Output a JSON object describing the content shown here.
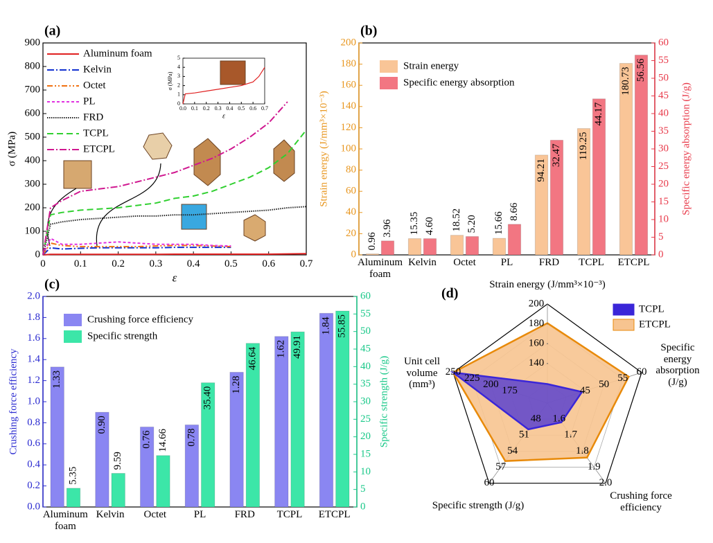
{
  "chart_data": [
    {
      "type": "line",
      "title": "(a)",
      "xlabel": "ε",
      "ylabel": "σ (MPa)",
      "x": [
        0,
        0.02,
        0.05,
        0.1,
        0.15,
        0.2,
        0.25,
        0.3,
        0.35,
        0.4,
        0.45,
        0.5,
        0.55,
        0.6,
        0.65,
        0.7
      ],
      "xlim": [
        0,
        0.7
      ],
      "xticks": [
        0,
        0.1,
        0.2,
        0.3,
        0.4,
        0.5,
        0.6,
        0.7
      ],
      "ylim": [
        0,
        900
      ],
      "yticks": [
        0,
        100,
        200,
        300,
        400,
        500,
        600,
        700,
        800,
        900
      ],
      "series": [
        {
          "name": "Aluminum foam",
          "color": "#e02020",
          "linestyle": "solid",
          "values": [
            0,
            2,
            2,
            2,
            2,
            2,
            2,
            2,
            3,
            3,
            3,
            3,
            3,
            3,
            4,
            5
          ]
        },
        {
          "name": "Kelvin",
          "color": "#1030d0",
          "linestyle": "dashdot",
          "values": [
            0,
            30,
            25,
            28,
            30,
            30,
            30,
            30,
            32,
            32,
            32,
            32,
            null,
            null,
            null,
            null
          ]
        },
        {
          "name": "Octet",
          "color": "#f07010",
          "linestyle": "dashdotdot",
          "values": [
            0,
            50,
            40,
            35,
            35,
            35,
            35,
            38,
            40,
            40,
            38,
            35,
            null,
            null,
            null,
            null
          ]
        },
        {
          "name": "PL",
          "color": "#e030e0",
          "linestyle": "dashed",
          "values": [
            0,
            70,
            45,
            45,
            50,
            55,
            50,
            45,
            45,
            45,
            40,
            38,
            null,
            null,
            null,
            null
          ]
        },
        {
          "name": "FRD",
          "color": "#202020",
          "linestyle": "dotted",
          "values": [
            0,
            130,
            140,
            150,
            155,
            160,
            165,
            165,
            170,
            170,
            175,
            180,
            185,
            190,
            200,
            205
          ]
        },
        {
          "name": "TCPL",
          "color": "#30d030",
          "linestyle": "longdash",
          "values": [
            0,
            170,
            180,
            190,
            195,
            200,
            210,
            220,
            240,
            250,
            270,
            300,
            330,
            370,
            430,
            530
          ]
        },
        {
          "name": "ETCPL",
          "color": "#d01890",
          "linestyle": "dashdot",
          "values": [
            0,
            200,
            230,
            270,
            280,
            290,
            310,
            330,
            350,
            380,
            410,
            450,
            500,
            560,
            650,
            null
          ]
        }
      ]
    },
    {
      "type": "line",
      "xlabel": "ε",
      "ylabel": "σ (MPa)",
      "x": [
        0,
        0.02,
        0.1,
        0.2,
        0.3,
        0.4,
        0.5,
        0.6,
        0.65,
        0.7
      ],
      "xlim": [
        0,
        0.7
      ],
      "xticks": [
        {
          "value": 0,
          "label": "0.0"
        },
        0.1,
        0.2,
        0.3,
        0.4,
        0.5,
        0.6,
        0.7
      ],
      "ylim": [
        0,
        5
      ],
      "yticks": [
        0,
        1,
        2,
        3,
        4,
        5
      ],
      "series": [
        {
          "color": "#e02020",
          "linestyle": "solid",
          "values": [
            0,
            1.1,
            1.2,
            1.4,
            1.6,
            1.8,
            2.0,
            2.4,
            3.0,
            4.0
          ]
        }
      ]
    },
    {
      "type": "bar",
      "title": "(b)",
      "ylabel": "Strain energy (J/mm³×10⁻³)",
      "y2label": "Specific energy absorption (J/g)",
      "categories": [
        "Aluminum foam",
        "Kelvin",
        "Octet",
        "PL",
        "FRD",
        "TCPL",
        "ETCPL"
      ],
      "ylim": [
        0,
        200
      ],
      "yticks": [
        0,
        20,
        40,
        60,
        80,
        100,
        120,
        140,
        160,
        180,
        200
      ],
      "ycolor": "#e8961e",
      "y2lim": [
        0,
        60
      ],
      "y2ticks": [
        0,
        5,
        10,
        15,
        20,
        25,
        30,
        35,
        40,
        45,
        50,
        55,
        60
      ],
      "y2color": "#e83a4a",
      "legend": "upper left",
      "series": [
        {
          "name": "Strain energy",
          "color": "#f9c597",
          "values": [
            0.96,
            15.35,
            18.52,
            15.66,
            94.21,
            119.25,
            180.73
          ]
        },
        {
          "name": "Specific energy absorption",
          "color": "#f27682",
          "axis": "y2",
          "values": [
            3.96,
            4.6,
            5.2,
            8.66,
            32.47,
            44.17,
            56.56
          ],
          "value_labels": [
            "3.96",
            "4.60",
            "5.20",
            "8.66",
            "32.47",
            "44.17",
            "56.56"
          ]
        }
      ]
    },
    {
      "type": "bar",
      "title": "(c)",
      "ylabel": "Crushing force efficiency",
      "y2label": "Specific strength (J/g)",
      "categories": [
        "Aluminum foam",
        "Kelvin",
        "Octet",
        "PL",
        "FRD",
        "TCPL",
        "ETCPL"
      ],
      "ylim": [
        0,
        2
      ],
      "yticks": [
        {
          "value": 0,
          "label": "0.0"
        },
        0.2,
        0.4,
        0.6,
        0.8,
        {
          "value": 1,
          "label": "1.0"
        },
        1.2,
        1.4,
        1.6,
        1.8,
        {
          "value": 2,
          "label": "2.0"
        }
      ],
      "ycolor": "#2a2ad0",
      "y2lim": [
        0,
        60
      ],
      "y2ticks": [
        0,
        5,
        10,
        15,
        20,
        25,
        30,
        35,
        40,
        45,
        50,
        55,
        60
      ],
      "y2color": "#18c888",
      "legend": "upper left",
      "series": [
        {
          "name": "Crushing force efficiency",
          "color": "#8a86f2",
          "values": [
            1.33,
            0.9,
            0.76,
            0.78,
            1.28,
            1.62,
            1.84
          ],
          "value_labels": [
            "1.33",
            "0.90",
            "0.76",
            "0.78",
            "1.28",
            "1.62",
            "1.84"
          ]
        },
        {
          "name": "Specific strength",
          "color": "#3ce6a8",
          "axis": "y2",
          "values": [
            5.35,
            9.59,
            14.66,
            35.4,
            46.64,
            49.91,
            55.85
          ],
          "value_labels": [
            "5.35",
            "9.59",
            "14.66",
            "35.40",
            "46.64",
            "49.91",
            "55.85"
          ]
        }
      ]
    },
    {
      "type": "radar",
      "title": "(d)",
      "axes": [
        {
          "label": "Strain energy (J/mm³×10⁻³)",
          "range": [
            100,
            200
          ],
          "ticks": [
            140,
            160,
            180,
            200
          ]
        },
        {
          "label": "Specific energy absorption (J/g)",
          "range": [
            35,
            60
          ],
          "ticks": [
            45,
            50,
            55,
            60
          ]
        },
        {
          "label": "Crushing force efficiency",
          "range": [
            1.5,
            2
          ],
          "ticks": [
            1.6,
            1.7,
            1.8,
            1.9,
            {
              "value": 2,
              "label": "2.0"
            }
          ]
        },
        {
          "label": "Specific strength (J/g)",
          "range": [
            45,
            60
          ],
          "ticks": [
            48,
            51,
            54,
            57,
            60
          ]
        },
        {
          "label": "Unit cell volume (mm³)",
          "range": [
            125,
            250
          ],
          "ticks": [
            175,
            200,
            225,
            250
          ]
        }
      ],
      "series": [
        {
          "name": "TCPL",
          "color": "#3a26d8",
          "edgecolor": "#3a26d8",
          "values": [
            119.25,
            44.17,
            1.62,
            49.91,
            250
          ]
        },
        {
          "name": "ETCPL",
          "color": "#f7c490",
          "edgecolor": "#e88a0a",
          "values": [
            180.73,
            56.56,
            1.84,
            55.85,
            250
          ]
        }
      ]
    }
  ]
}
